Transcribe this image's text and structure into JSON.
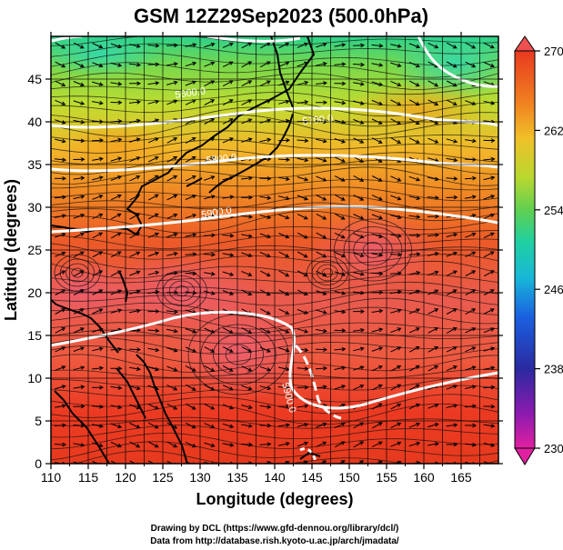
{
  "title": "GSM 12Z29Sep2023 (500.0hPa)",
  "xlabel": "Longitude (degrees)",
  "ylabel": "Latitude  (degrees)",
  "x_ticks": [
    "110",
    "115",
    "120",
    "125",
    "130",
    "135",
    "140",
    "145",
    "150",
    "155",
    "160",
    "165"
  ],
  "y_ticks": [
    "0",
    "5",
    "10",
    "15",
    "20",
    "25",
    "30",
    "35",
    "40",
    "45"
  ],
  "colorbar": {
    "ticks": [
      "270",
      "262",
      "254",
      "246",
      "238",
      "230"
    ],
    "min": 230,
    "max": 270,
    "colors": [
      "#e020a0",
      "#8a1ab0",
      "#2a2aa0",
      "#1a60e0",
      "#18b8d8",
      "#20d0a0",
      "#60d050",
      "#b8d830",
      "#f0c028",
      "#f08020",
      "#e83a20",
      "#e83030"
    ]
  },
  "contours": [
    {
      "label": "5600.0"
    },
    {
      "label": "5700.0"
    },
    {
      "label": "5800.0"
    },
    {
      "label": "5900.0"
    },
    {
      "label": "5900.0"
    }
  ],
  "credits": [
    "Drawing by DCL (https://www.gfd-dennou.org/library/dcl/)",
    "Data from http://database.rish.kyoto-u.ac.jp/arch/jmadata/"
  ],
  "chart_data": {
    "type": "heatmap",
    "title": "GSM 12Z29Sep2023 (500.0hPa)",
    "xlabel": "Longitude (degrees)",
    "ylabel": "Latitude  (degrees)",
    "xlim": [
      110,
      170
    ],
    "ylim": [
      0,
      50
    ],
    "variable_range": [
      230,
      270
    ],
    "contour_levels": [
      5600,
      5700,
      5800,
      5900
    ],
    "grid": true,
    "legend": "right"
  }
}
